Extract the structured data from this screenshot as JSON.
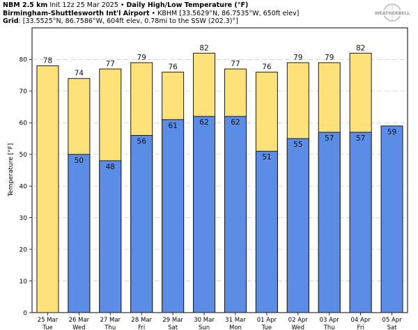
{
  "header": {
    "line1_bold": "NBM 2.5 km",
    "line1_mid": "Init 12z 25 Mar 2025",
    "line1_sep": " • ",
    "line1_title": "Daily High/Low Temperature (°F)",
    "line2_bold": "Birmingham-Shuttlesworth Int'l Airport",
    "line2_sep": " • ",
    "line2_info": "KBHM [33.5629°N, 86.7535°W, 650ft elev]",
    "line3_bold": "Grid",
    "line3_info": ": [33.5525°N, 86.7586°W, 604ft elev, 0.78mi to the SSW (202.3)°]"
  },
  "logo": {
    "text": "WEATHERBELL"
  },
  "chart_data": {
    "type": "bar",
    "ylabel": "Temperature [°F]",
    "ylim": [
      0,
      90
    ],
    "yticks": [
      0,
      10,
      20,
      30,
      40,
      50,
      60,
      70,
      80
    ],
    "grid": true,
    "categories": [
      [
        "25 Mar",
        "Tue"
      ],
      [
        "26 Mar",
        "Wed"
      ],
      [
        "27 Mar",
        "Thu"
      ],
      [
        "28 Mar",
        "Fri"
      ],
      [
        "29 Mar",
        "Sat"
      ],
      [
        "30 Mar",
        "Sun"
      ],
      [
        "31 Mar",
        "Mon"
      ],
      [
        "01 Apr",
        "Tue"
      ],
      [
        "02 Apr",
        "Wed"
      ],
      [
        "03 Apr",
        "Thu"
      ],
      [
        "04 Apr",
        "Fri"
      ],
      [
        "05 Apr",
        "Sat"
      ]
    ],
    "series": [
      {
        "values": [
          78,
          74,
          77,
          79,
          76,
          82,
          77,
          76,
          79,
          79,
          82,
          null
        ],
        "color": "#fde27a"
      },
      {
        "values": [
          null,
          50,
          48,
          56,
          61,
          62,
          62,
          51,
          55,
          57,
          57,
          59
        ],
        "color": "#5b8ce6"
      }
    ]
  }
}
